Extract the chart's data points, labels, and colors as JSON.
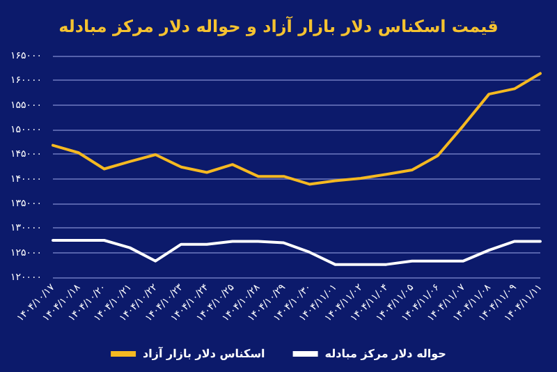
{
  "chart_data": {
    "type": "line",
    "title": "قیمت اسکناس دلار بازار آزاد و حواله دلار مرکز مبادله",
    "categories": [
      "۱۴۰۴/۱۰/۱۷",
      "۱۴۰۴/۱۰/۱۸",
      "۱۴۰۴/۱۰/۲۰",
      "۱۴۰۴/۱۰/۲۱",
      "۱۴۰۴/۱۰/۲۲",
      "۱۴۰۴/۱۰/۲۳",
      "۱۴۰۴/۱۰/۲۴",
      "۱۴۰۴/۱۰/۲۵",
      "۱۴۰۴/۱۰/۲۸",
      "۱۴۰۴/۱۰/۲۹",
      "۱۴۰۴/۱۰/۳۰",
      "۱۴۰۴/۱۱/۰۱",
      "۱۴۰۴/۱۱/۰۲",
      "۱۴۰۴/۱۱/۰۴",
      "۱۴۰۴/۱۱/۰۵",
      "۱۴۰۴/۱۱/۰۶",
      "۱۴۰۴/۱۱/۰۷",
      "۱۴۰۴/۱۱/۰۸",
      "۱۴۰۴/۱۱/۰۹",
      "۱۴۰۴/۱۱/۱۱"
    ],
    "series": [
      {
        "name": "حواله دلار مرکز مبادله",
        "color": "#ffffff",
        "values": [
          127500,
          127500,
          127500,
          126000,
          123300,
          126700,
          126700,
          127300,
          127300,
          127000,
          125100,
          122600,
          122600,
          122600,
          123300,
          123300,
          123300,
          125500,
          127300,
          127300
        ]
      },
      {
        "name": "اسکناس دلار بازار آزاد",
        "color": "#f5b921",
        "values": [
          146800,
          145300,
          142000,
          143500,
          144900,
          142400,
          141300,
          142900,
          140500,
          140500,
          138900,
          139600,
          140100,
          140900,
          141800,
          144700,
          150800,
          157200,
          158300,
          161400
        ]
      }
    ],
    "ylim": [
      120000,
      165000
    ],
    "yticks": [
      {
        "value": 120000,
        "label": "۱۲۰۰۰۰"
      },
      {
        "value": 125000,
        "label": "۱۲۵۰۰۰"
      },
      {
        "value": 130000,
        "label": "۱۳۰۰۰۰"
      },
      {
        "value": 135000,
        "label": "۱۳۵۰۰۰"
      },
      {
        "value": 140000,
        "label": "۱۴۰۰۰۰"
      },
      {
        "value": 145000,
        "label": "۱۴۵۰۰۰"
      },
      {
        "value": 150000,
        "label": "۱۵۰۰۰۰"
      },
      {
        "value": 155000,
        "label": "۱۵۵۰۰۰"
      },
      {
        "value": 160000,
        "label": "۱۶۰۰۰۰"
      },
      {
        "value": 165000,
        "label": "۱۶۵۰۰۰"
      }
    ],
    "grid": "y",
    "legend": "bottom",
    "marker": "none",
    "line_style": "solid"
  }
}
